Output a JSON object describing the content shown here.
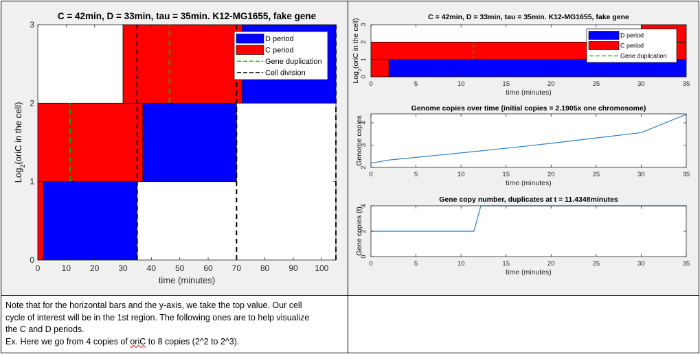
{
  "note": {
    "line1": "Note that for the horizontal bars and the y-axis, we take the top value. Our cell",
    "line2": "cycle of interest will be in the 1st region. The following ones are to help visualize",
    "line3": "the C and D periods.",
    "line4_pre": "Ex. Here we go from 4 copies of ",
    "line4_word": "oriC",
    "line4_post": " to 8 copies (2^2 to 2^3)."
  },
  "colors": {
    "d_period": "#0000ff",
    "c_period": "#ff0000",
    "gene_dup": "#00b000",
    "cell_div": "#000000",
    "line": "#2f7fc1"
  },
  "chart_data": [
    {
      "type": "bar",
      "title": "C = 42min, D = 33min, tau = 35min. K12-MG1655, fake gene",
      "xlabel": "time (minutes)",
      "ylabel": "Log2(oriC in the cell)",
      "xlim": [
        0,
        105
      ],
      "ylim": [
        0,
        3
      ],
      "xticks": [
        0,
        10,
        20,
        30,
        40,
        50,
        60,
        70,
        80,
        90,
        100
      ],
      "yticks": [
        0,
        1,
        2,
        3
      ],
      "legend": [
        "D period",
        "C period",
        "Gene duplication",
        "Cell division"
      ],
      "legend_position": "top-right",
      "bars": [
        {
          "kind": "C period",
          "x0": 0,
          "x1": 2,
          "y0": 0,
          "y1": 1
        },
        {
          "kind": "D period",
          "x0": 2,
          "x1": 35,
          "y0": 0,
          "y1": 1
        },
        {
          "kind": "C period",
          "x0": 0,
          "x1": 37,
          "y0": 1,
          "y1": 2
        },
        {
          "kind": "D period",
          "x0": 37,
          "x1": 70,
          "y0": 1,
          "y1": 2
        },
        {
          "kind": "C period",
          "x0": 30,
          "x1": 72,
          "y0": 2,
          "y1": 3
        },
        {
          "kind": "D period",
          "x0": 72,
          "x1": 105,
          "y0": 2,
          "y1": 3
        }
      ],
      "gene_duplication": [
        {
          "x": 11.4,
          "y0": 1,
          "y1": 2
        },
        {
          "x": 46.4,
          "y0": 2,
          "y1": 3
        }
      ],
      "cell_division": [
        35,
        70,
        105
      ]
    },
    {
      "type": "bar",
      "title": "C = 42min, D = 33min, tau = 35min. K12-MG1655, fake gene",
      "xlabel": "time (minutes)",
      "ylabel": "Log2(oriC in the cell)",
      "xlim": [
        0,
        35
      ],
      "ylim": [
        0,
        3
      ],
      "xticks": [
        0,
        5,
        10,
        15,
        20,
        25,
        30,
        35
      ],
      "yticks": [
        0,
        1,
        2,
        3
      ],
      "legend": [
        "D period",
        "C period",
        "Gene duplication"
      ],
      "legend_position": "top-right",
      "bars": [
        {
          "kind": "C period",
          "x0": 0,
          "x1": 2,
          "y0": 0,
          "y1": 1
        },
        {
          "kind": "D period",
          "x0": 2,
          "x1": 35,
          "y0": 0,
          "y1": 1
        },
        {
          "kind": "C period",
          "x0": 0,
          "x1": 35,
          "y0": 1,
          "y1": 2
        },
        {
          "kind": "C period",
          "x0": 30,
          "x1": 35,
          "y0": 2,
          "y1": 3
        }
      ],
      "gene_duplication": [
        {
          "x": 11.4,
          "y0": 1,
          "y1": 2
        }
      ]
    },
    {
      "type": "line",
      "title": "Genome copies over time (initial copies = 2.1905x one chromosome)",
      "xlabel": "time (minutes)",
      "ylabel": "Genome copies",
      "xlim": [
        0,
        35
      ],
      "ylim": [
        2,
        4.4
      ],
      "xticks": [
        0,
        5,
        10,
        15,
        20,
        25,
        30,
        35
      ],
      "yticks": [
        2,
        3,
        4
      ],
      "x": [
        0,
        2,
        5,
        10,
        15,
        20,
        25,
        30,
        35
      ],
      "y": [
        2.19,
        2.33,
        2.45,
        2.65,
        2.86,
        3.08,
        3.32,
        3.56,
        4.38
      ]
    },
    {
      "type": "line",
      "title": "Gene copy number, duplicates at t = 11.4348minutes",
      "xlabel": "time (minutes)",
      "ylabel": "Gene copies (t)",
      "xlim": [
        0,
        35
      ],
      "ylim": [
        0,
        4
      ],
      "xticks": [
        0,
        5,
        10,
        15,
        20,
        25,
        30,
        35
      ],
      "yticks": [
        0,
        2,
        4
      ],
      "x": [
        0,
        10.9,
        11.43,
        12.2,
        35
      ],
      "y": [
        2,
        2,
        2,
        4,
        4
      ]
    }
  ]
}
